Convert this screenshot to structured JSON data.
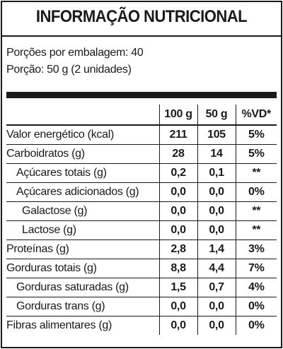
{
  "title": "INFORMAÇÃO NUTRICIONAL",
  "servings_per_pack": "Porções por embalagem: 40",
  "serving_size": "Porção: 50 g (2 unidades)",
  "columns": [
    "100 g",
    "50 g",
    "%VD*"
  ],
  "rows": [
    {
      "name": "Valor energético (kcal)",
      "v100": "211",
      "v50": "105",
      "vd": "5%"
    },
    {
      "name": "Carboidratos (g)",
      "v100": "28",
      "v50": "14",
      "vd": "5%"
    },
    {
      "name": "Açúcares totais (g)",
      "v100": "0,2",
      "v50": "0,1",
      "vd": "**"
    },
    {
      "name": "Açúcares adicionados (g)",
      "v100": "0,0",
      "v50": "0,0",
      "vd": "0%"
    },
    {
      "name": "Galactose (g)",
      "v100": "0,0",
      "v50": "0,0",
      "vd": "**"
    },
    {
      "name": "Lactose (g)",
      "v100": "0,0",
      "v50": "0,0",
      "vd": "**"
    },
    {
      "name": "Proteínas (g)",
      "v100": "2,8",
      "v50": "1,4",
      "vd": "3%"
    },
    {
      "name": "Gorduras totais (g)",
      "v100": "8,8",
      "v50": "4,4",
      "vd": "7%"
    },
    {
      "name": "Gorduras saturadas (g)",
      "v100": "1,5",
      "v50": "0,7",
      "vd": "4%"
    },
    {
      "name": "Gorduras trans (g)",
      "v100": "0,0",
      "v50": "0,0",
      "vd": "0%"
    },
    {
      "name": "Fibras alimentares (g)",
      "v100": "0,0",
      "v50": "0,0",
      "vd": "0%"
    }
  ]
}
